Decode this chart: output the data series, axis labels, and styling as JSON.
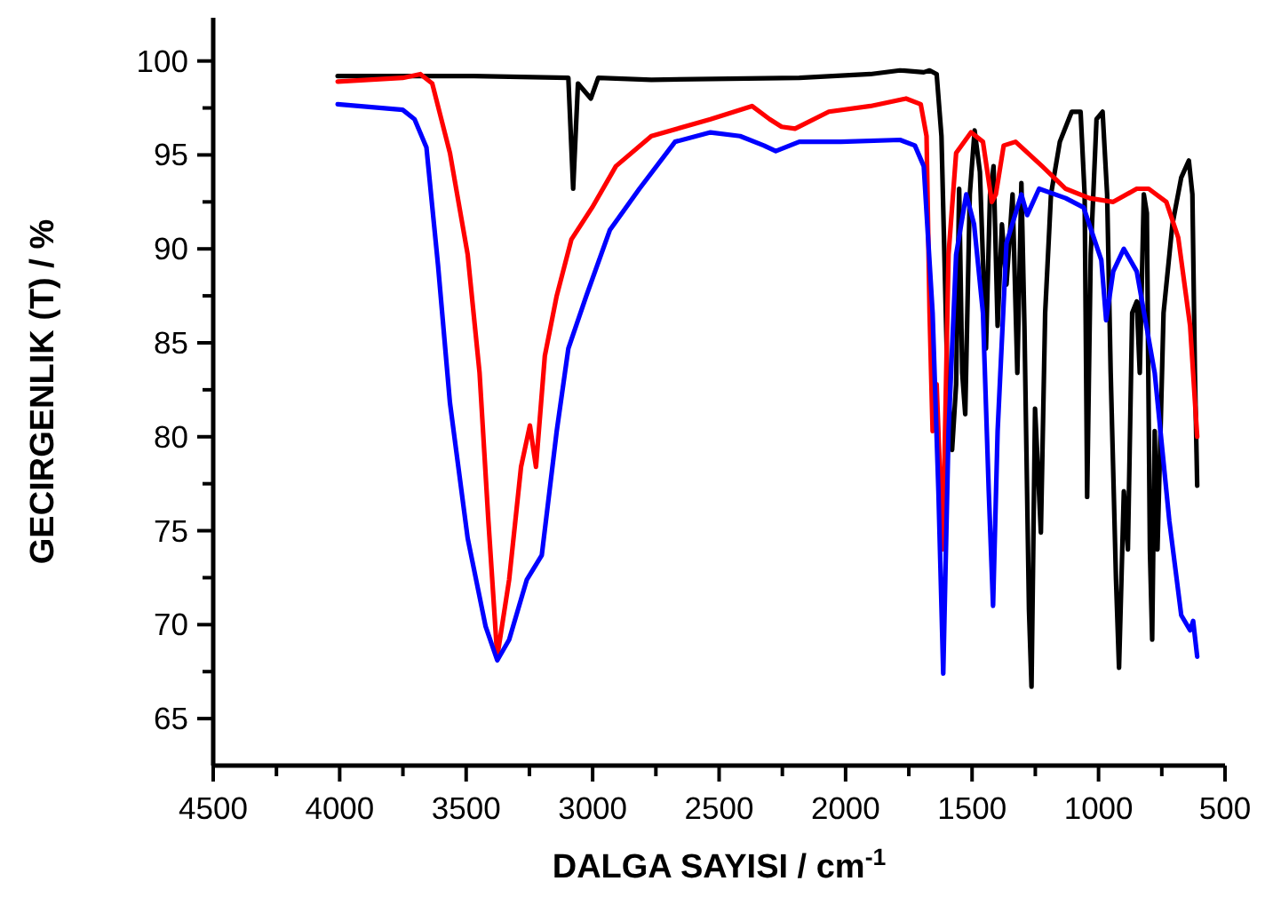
{
  "chart_data": {
    "type": "line",
    "xlabel": "DALGA SAYISI / cm$^{-1}$",
    "ylabel": "GECIRGENLIK (T) / %",
    "xlim": [
      4500,
      500
    ],
    "ylim": [
      62.5,
      102.3
    ],
    "xticks": [
      4500,
      {
        "value": 4250,
        "label": null
      },
      4000,
      {
        "value": 3750,
        "label": null
      },
      3500,
      {
        "value": 3250,
        "label": null
      },
      3000,
      {
        "value": 2750,
        "label": null
      },
      2500,
      {
        "value": 2250,
        "label": null
      },
      2000,
      {
        "value": 1750,
        "label": null
      },
      1500,
      {
        "value": 1250,
        "label": null
      },
      1000,
      {
        "value": 750,
        "label": null
      },
      500
    ],
    "yticks": [
      65,
      {
        "value": 67.5,
        "label": null
      },
      70,
      {
        "value": 72.5,
        "label": null
      },
      75,
      {
        "value": 77.5,
        "label": null
      },
      80,
      {
        "value": 82.5,
        "label": null
      },
      85,
      {
        "value": 87.5,
        "label": null
      },
      90,
      {
        "value": 92.5,
        "label": null
      },
      95,
      {
        "value": 97.5,
        "label": null
      },
      100
    ],
    "grid": false,
    "marker": "none",
    "line_style": "solid",
    "series": [
      {
        "color": "#000000",
        "x": [
          4008,
          3470,
          3096,
          3077,
          3058,
          3007,
          2978,
          2768,
          2183,
          1902,
          1785,
          1691,
          1668,
          1640,
          1621,
          1598,
          1579,
          1563,
          1551,
          1539,
          1527,
          1509,
          1490,
          1469,
          1445,
          1429,
          1415,
          1399,
          1382,
          1364,
          1340,
          1321,
          1305,
          1293,
          1275,
          1265,
          1251,
          1240,
          1228,
          1211,
          1188,
          1153,
          1106,
          1071,
          1055,
          1045,
          1031,
          1008,
          984,
          966,
          952,
          931,
          919,
          900,
          884,
          867,
          849,
          837,
          821,
          809,
          797,
          788,
          778,
          767,
          743,
          708,
          673,
          643,
          629,
          619,
          610
        ],
        "values": [
          99.2,
          99.2,
          99.1,
          93.2,
          98.8,
          98.0,
          99.1,
          99.0,
          99.1,
          99.3,
          99.5,
          99.4,
          99.5,
          99.3,
          96.0,
          83.4,
          79.3,
          82.8,
          93.2,
          83.4,
          81.2,
          92.9,
          96.3,
          94.1,
          84.7,
          92.9,
          94.4,
          85.9,
          91.3,
          88.1,
          92.9,
          83.4,
          93.5,
          85.9,
          70.8,
          66.7,
          81.5,
          78.4,
          74.9,
          86.6,
          92.9,
          95.7,
          97.3,
          97.3,
          92.9,
          76.8,
          89.7,
          96.9,
          97.3,
          92.9,
          83.4,
          72.4,
          67.7,
          77.1,
          74.0,
          86.6,
          87.2,
          83.4,
          92.9,
          91.9,
          74.0,
          69.2,
          80.3,
          74.0,
          86.6,
          91.3,
          93.8,
          94.7,
          92.9,
          83.4,
          77.4
        ]
      },
      {
        "color": "#ff0000",
        "x": [
          4008,
          3751,
          3681,
          3634,
          3564,
          3494,
          3447,
          3412,
          3377,
          3330,
          3283,
          3248,
          3224,
          3189,
          3142,
          3084,
          3002,
          2908,
          2768,
          2534,
          2370,
          2300,
          2253,
          2200,
          2066,
          1902,
          1761,
          1703,
          1680,
          1668,
          1656,
          1640,
          1616,
          1593,
          1563,
          1504,
          1457,
          1422,
          1406,
          1375,
          1328,
          1223,
          1130,
          1036,
          942,
          849,
          802,
          732,
          685,
          638,
          610
        ],
        "values": [
          98.9,
          99.1,
          99.3,
          98.8,
          95.1,
          89.7,
          83.4,
          75.5,
          68.3,
          72.4,
          78.4,
          80.6,
          78.4,
          84.3,
          87.5,
          90.5,
          92.2,
          94.4,
          96.0,
          96.9,
          97.6,
          96.9,
          96.5,
          96.4,
          97.3,
          97.6,
          98.0,
          97.7,
          96.0,
          86.6,
          80.3,
          82.8,
          74.0,
          89.7,
          95.1,
          96.2,
          95.7,
          92.5,
          92.9,
          95.5,
          95.7,
          94.4,
          93.2,
          92.7,
          92.5,
          93.2,
          93.2,
          92.5,
          90.6,
          85.9,
          80.0
        ]
      },
      {
        "color": "#0000ff",
        "x": [
          4008,
          3751,
          3704,
          3657,
          3611,
          3564,
          3494,
          3423,
          3377,
          3330,
          3260,
          3201,
          3142,
          3096,
          3025,
          2932,
          2815,
          2674,
          2534,
          2417,
          2323,
          2276,
          2183,
          2019,
          1785,
          1726,
          1691,
          1656,
          1633,
          1614,
          1593,
          1563,
          1523,
          1492,
          1457,
          1434,
          1417,
          1399,
          1364,
          1305,
          1282,
          1235,
          1130,
          1059,
          989,
          970,
          942,
          900,
          849,
          778,
          720,
          673,
          638,
          626,
          610
        ],
        "values": [
          97.7,
          97.4,
          96.9,
          95.4,
          89.1,
          81.8,
          74.6,
          69.9,
          68.1,
          69.2,
          72.4,
          73.7,
          80.3,
          84.7,
          87.5,
          91.0,
          93.2,
          95.7,
          96.2,
          96.0,
          95.5,
          95.2,
          95.7,
          95.7,
          95.8,
          95.5,
          94.4,
          86.6,
          77.1,
          67.4,
          80.3,
          89.7,
          92.9,
          91.3,
          86.6,
          77.1,
          71.0,
          80.3,
          90.3,
          92.9,
          91.8,
          93.2,
          92.7,
          92.2,
          89.4,
          86.2,
          88.8,
          90.0,
          88.8,
          83.4,
          75.5,
          70.5,
          69.7,
          70.2,
          68.3
        ]
      }
    ]
  }
}
